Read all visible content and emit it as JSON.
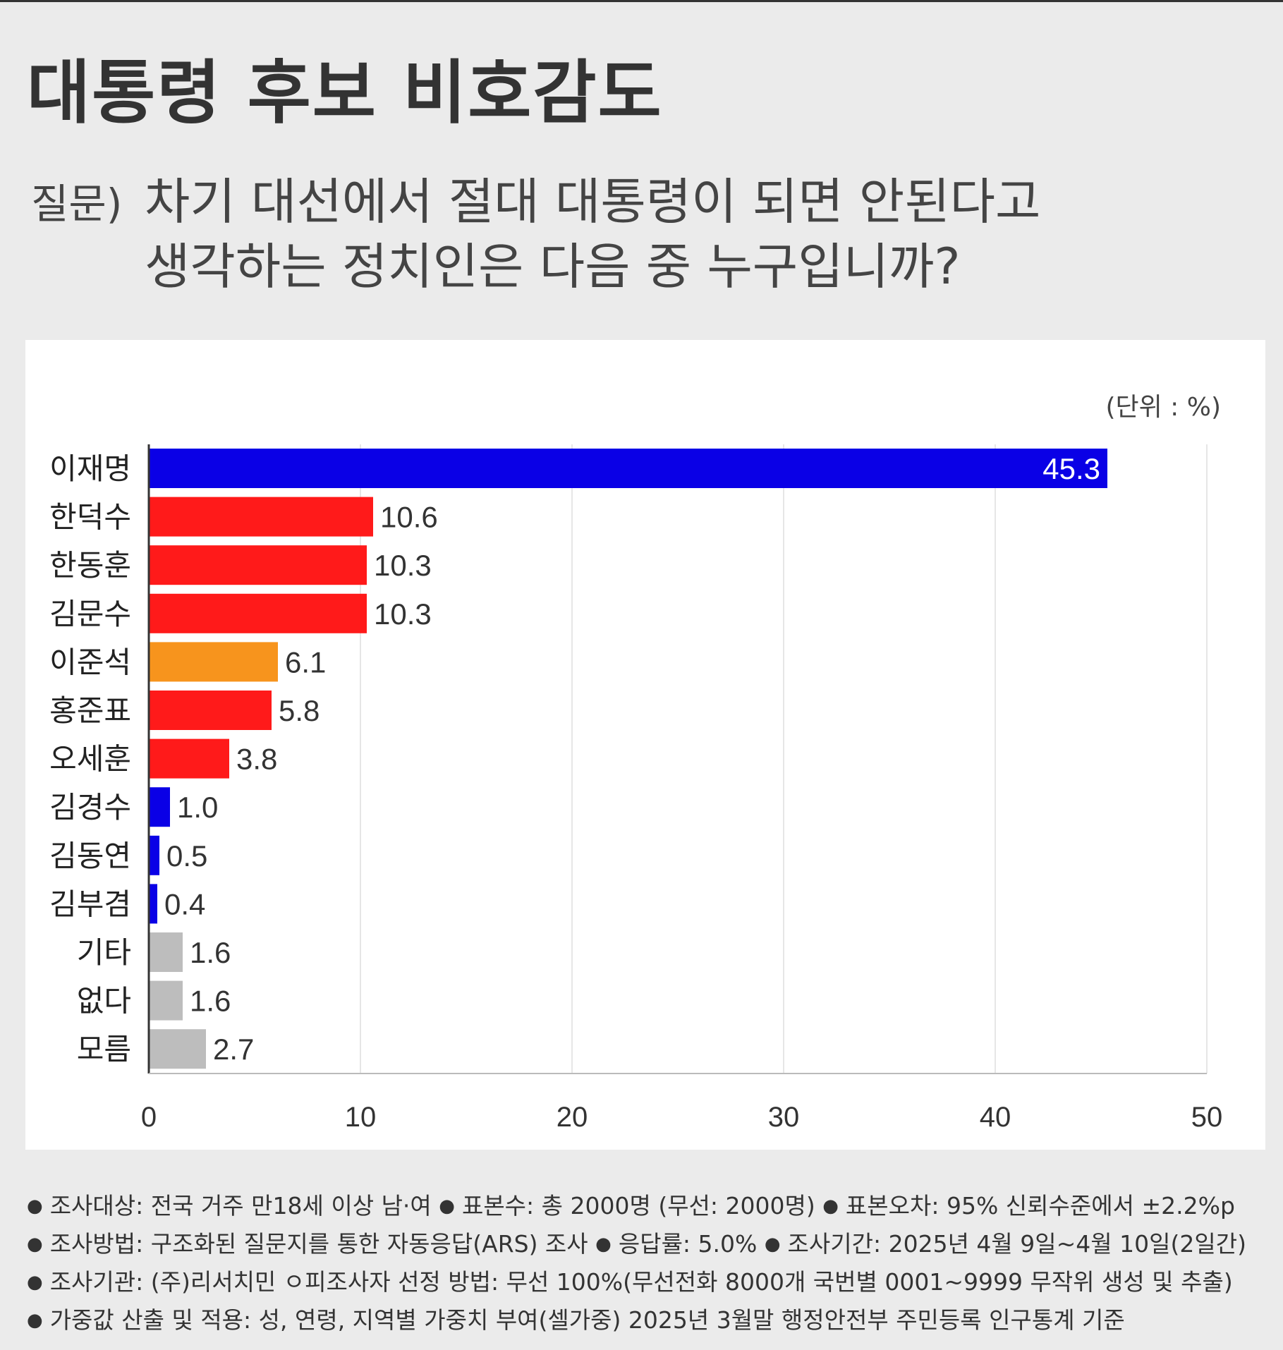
{
  "title": "대통령 후보 비호감도",
  "question": {
    "label": "질문)",
    "line1": "차기 대선에서 절대 대통령이 되면 안된다고",
    "line2": "생각하는 정치인은 다음 중 누구입니까?"
  },
  "chart_data": {
    "type": "bar",
    "orientation": "horizontal",
    "unit_label": "(단위 : %)",
    "categories": [
      "이재명",
      "한덕수",
      "한동훈",
      "김문수",
      "이준석",
      "홍준표",
      "오세훈",
      "김경수",
      "김동연",
      "김부겸",
      "기타",
      "없다",
      "모름"
    ],
    "values": [
      45.3,
      10.6,
      10.3,
      10.3,
      6.1,
      5.8,
      3.8,
      1.0,
      0.5,
      0.4,
      1.6,
      1.6,
      2.7
    ],
    "value_labels": [
      "45.3",
      "10.6",
      "10.3",
      "10.3",
      "6.1",
      "5.8",
      "3.8",
      "1.0",
      "0.5",
      "0.4",
      "1.6",
      "1.6",
      "2.7"
    ],
    "bar_colors": [
      "#0a00e6",
      "#ff1a1a",
      "#ff1a1a",
      "#ff1a1a",
      "#f7941d",
      "#ff1a1a",
      "#ff1a1a",
      "#0a00e6",
      "#0a00e6",
      "#0a00e6",
      "#bdbdbd",
      "#bdbdbd",
      "#bdbdbd"
    ],
    "xlim": [
      0,
      50
    ],
    "xticks": [
      0,
      10,
      20,
      30,
      40,
      50
    ],
    "xtick_labels": [
      "0",
      "10",
      "20",
      "30",
      "40",
      "50"
    ],
    "grid": true,
    "legend": "none",
    "title": "",
    "xlabel": "",
    "ylabel": ""
  },
  "footnotes": [
    [
      "조사대상: 전국 거주 만18세 이상 남·여",
      "표본수: 총 2000명 (무선: 2000명)",
      "표본오차: 95% 신뢰수준에서 ±2.2%p"
    ],
    [
      "조사방법: 구조화된 질문지를 통한 자동응답(ARS) 조사",
      "응답률: 5.0%",
      "조사기간: 2025년 4월 9일~4월 10일(2일간)"
    ],
    [
      "조사기관: (주)리서치민 ㅇ피조사자 선정 방법: 무선 100%(무선전화 8000개 국번별 0001~9999 무작위 생성 및 추출)"
    ],
    [
      "가중값 산출 및 적용: 성, 연령, 지역별 가중치 부여(셀가중) 2025년 3월말 행정안전부 주민등록 인구통계 기준"
    ]
  ]
}
